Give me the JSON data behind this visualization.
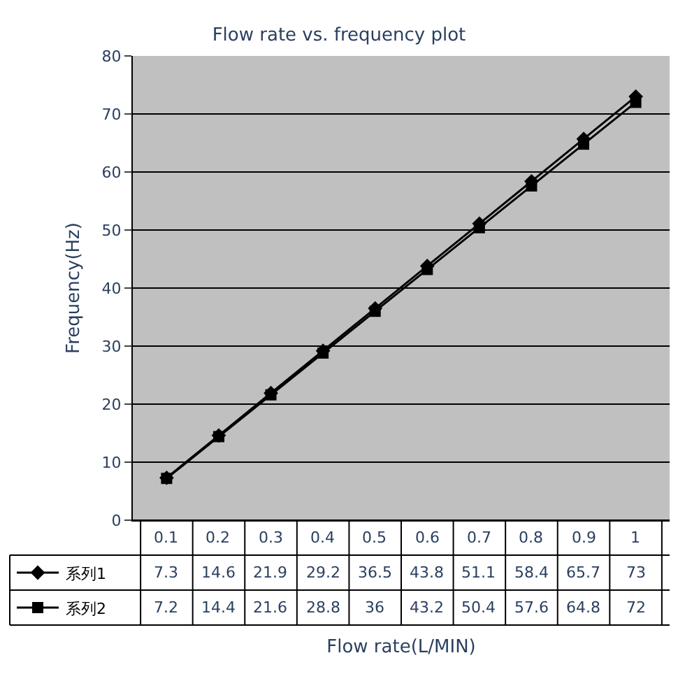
{
  "chart_data": {
    "type": "line",
    "title": "Flow rate vs. frequency plot",
    "xlabel": "Flow rate(L/MIN)",
    "ylabel": "Frequency(Hz)",
    "categories": [
      "0.1",
      "0.2",
      "0.3",
      "0.4",
      "0.5",
      "0.6",
      "0.7",
      "0.8",
      "0.9",
      "1"
    ],
    "series": [
      {
        "name": "系列1",
        "color": "#000000",
        "marker": "diamond",
        "values": [
          7.3,
          14.6,
          21.9,
          29.2,
          36.5,
          43.8,
          51.1,
          58.4,
          65.7,
          73
        ]
      },
      {
        "name": "系列2",
        "color": "#000000",
        "marker": "square",
        "values": [
          7.2,
          14.4,
          21.6,
          28.8,
          36,
          43.2,
          50.4,
          57.6,
          64.8,
          72
        ]
      }
    ],
    "ylim": [
      0,
      80
    ],
    "yticks": [
      0,
      10,
      20,
      30,
      40,
      50,
      60,
      70,
      80
    ],
    "grid": "y",
    "legend": "bottom",
    "data_labels": true,
    "line_style": "solid"
  }
}
